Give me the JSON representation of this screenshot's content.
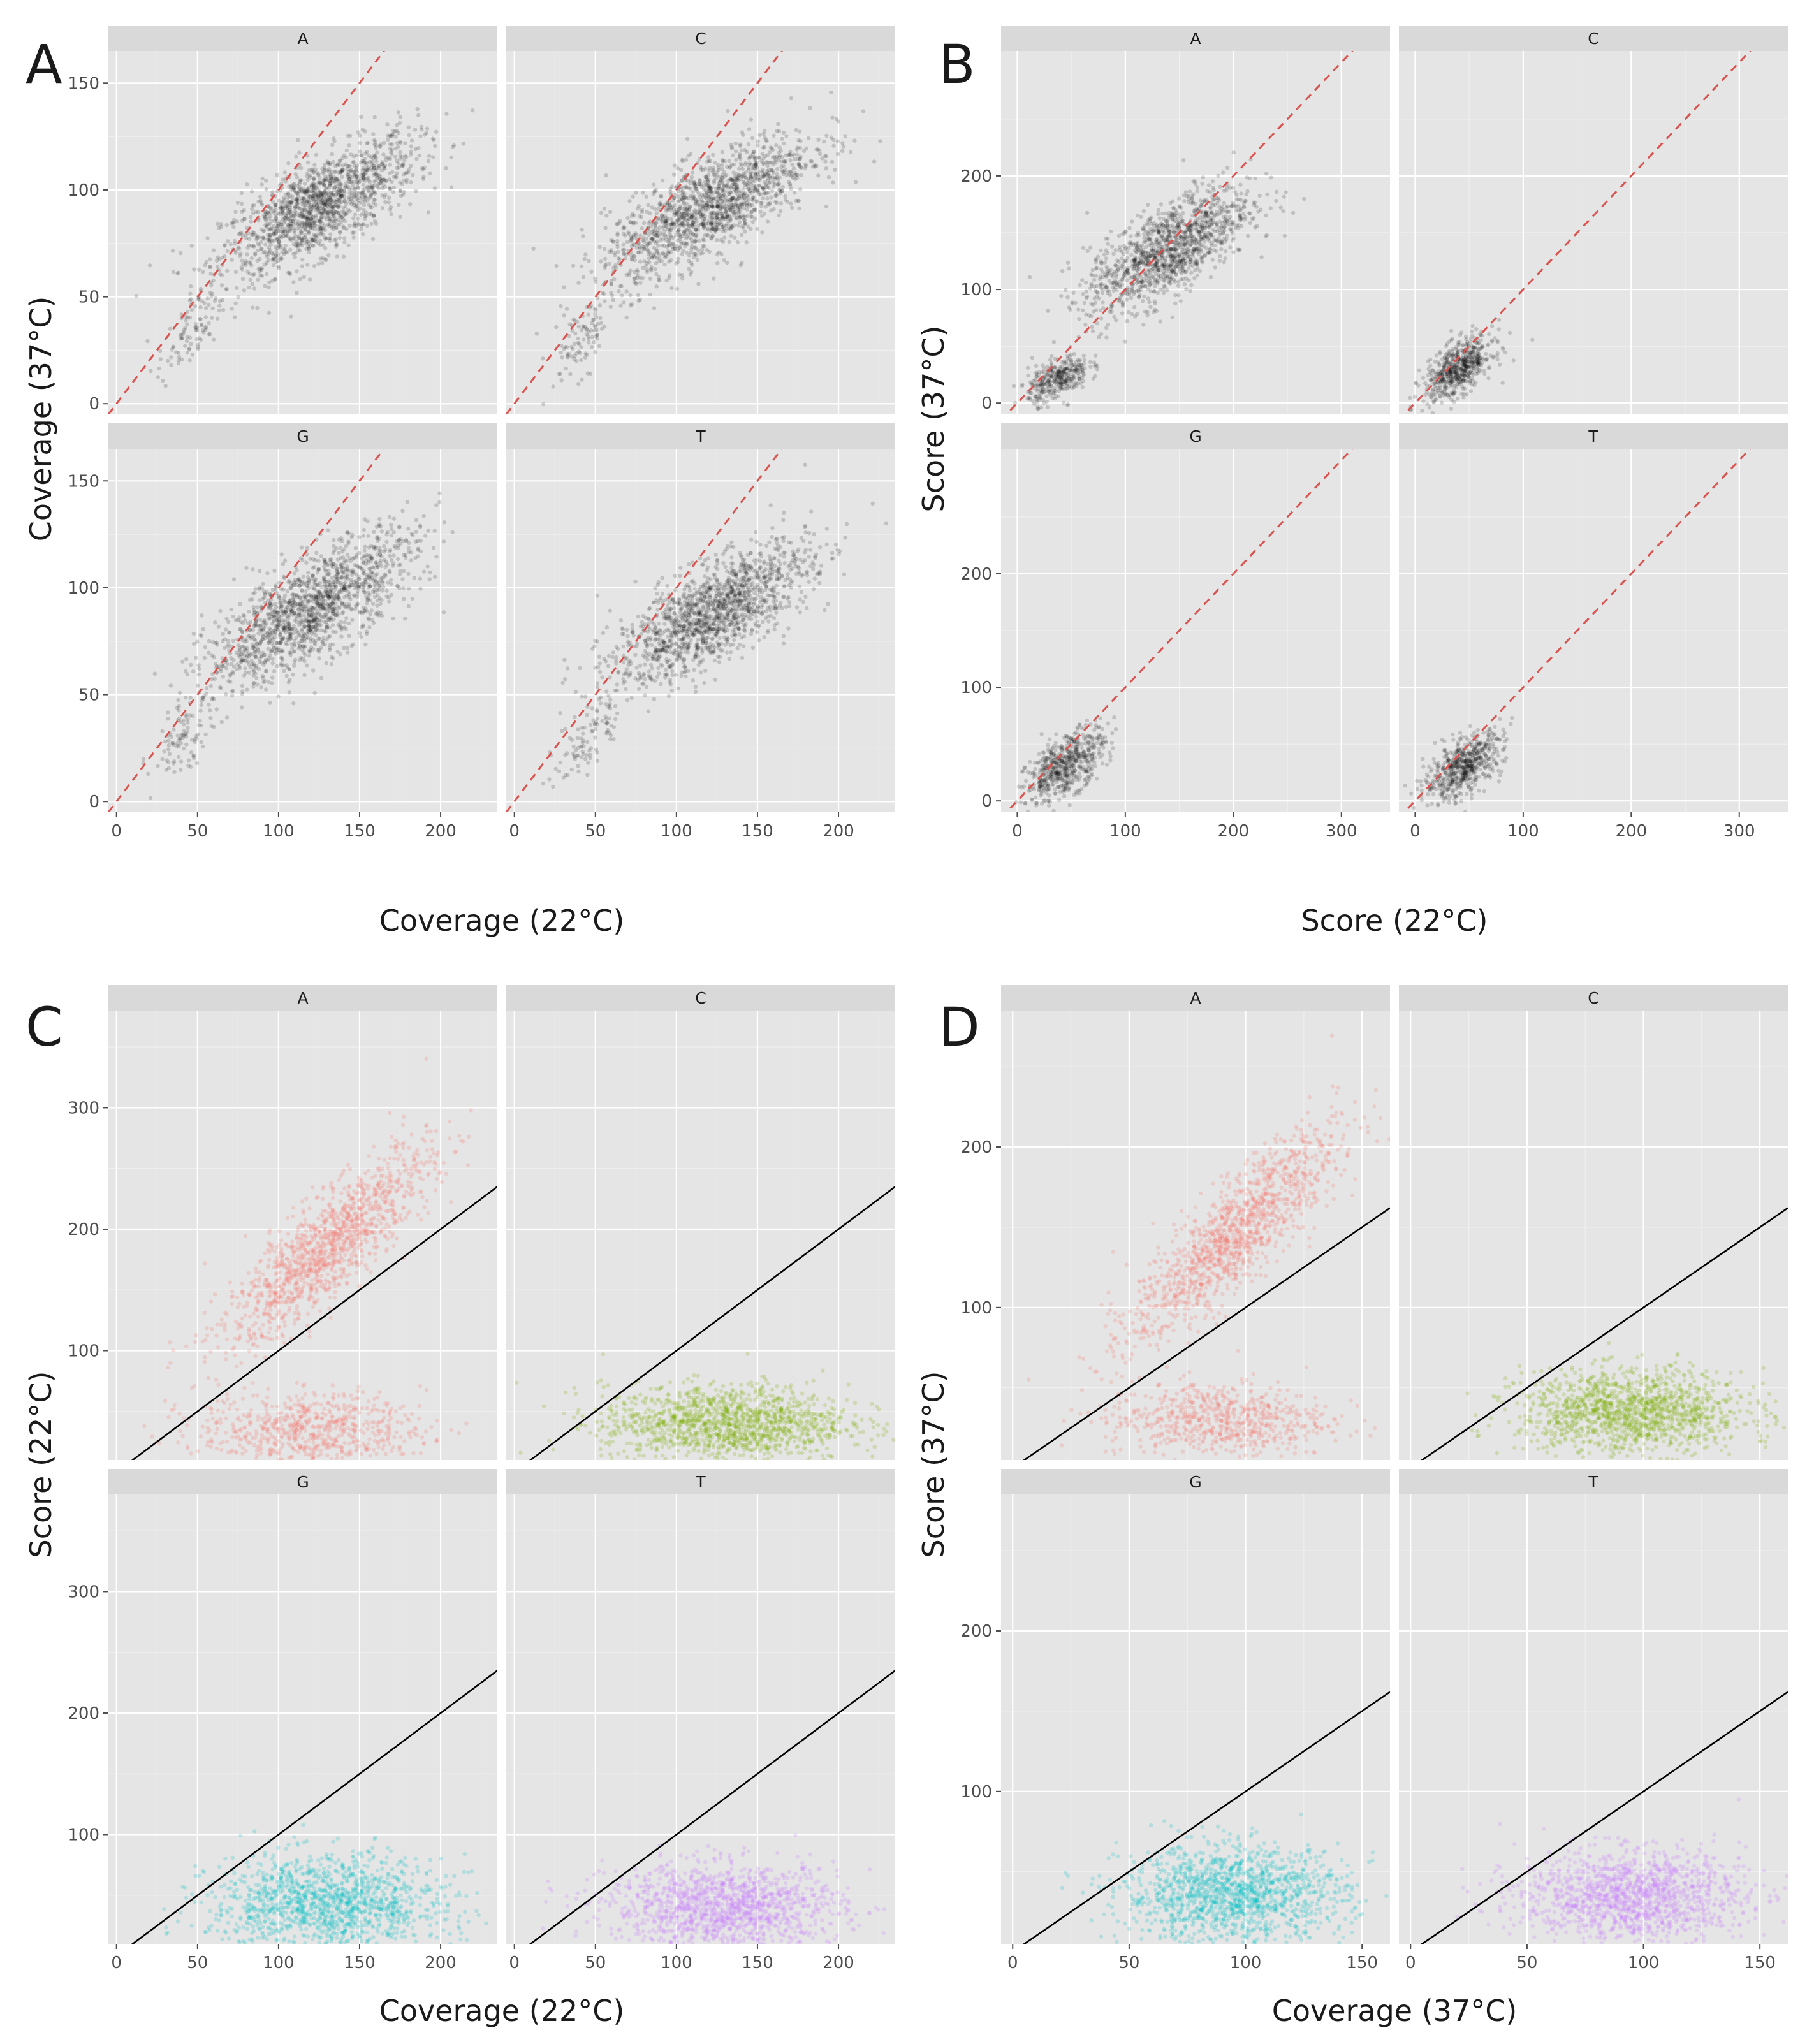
{
  "figure": {
    "panels": [
      {
        "letter": "A",
        "xlabel": "Coverage (22°C)",
        "ylabel": "Coverage (37°C)"
      },
      {
        "letter": "B",
        "xlabel": "Score (22°C)",
        "ylabel": "Score (37°C)"
      },
      {
        "letter": "C",
        "xlabel": "Coverage (22°C)",
        "ylabel": "Score (22°C)"
      },
      {
        "letter": "D",
        "xlabel": "Coverage (37°C)",
        "ylabel": "Score (37°C)"
      }
    ]
  },
  "chart_data": [
    {
      "panel": "A",
      "type": "scatter",
      "title": "",
      "xlabel": "Coverage (22°C)",
      "ylabel": "Coverage (37°C)",
      "facets": [
        "A",
        "C",
        "G",
        "T"
      ],
      "xlim": [
        -5,
        235
      ],
      "ylim": [
        -5,
        165
      ],
      "xticks": [
        0,
        50,
        100,
        150,
        200
      ],
      "yticks": [
        0,
        50,
        100,
        150
      ],
      "point_color": "#000000",
      "reference_line": {
        "style": "dashed",
        "color": "#d9534f",
        "slope": 1,
        "intercept": 0
      },
      "clouds": {
        "A": [
          {
            "cx": 125,
            "cy": 92,
            "sx": 30,
            "sy": 16,
            "corr": 0.72,
            "n": 1500
          },
          {
            "cx": 45,
            "cy": 32,
            "sx": 10,
            "sy": 10,
            "corr": 0.6,
            "n": 100
          }
        ],
        "C": [
          {
            "cx": 120,
            "cy": 92,
            "sx": 32,
            "sy": 17,
            "corr": 0.75,
            "n": 1500
          },
          {
            "cx": 42,
            "cy": 30,
            "sx": 10,
            "sy": 10,
            "corr": 0.6,
            "n": 100
          }
        ],
        "G": [
          {
            "cx": 120,
            "cy": 90,
            "sx": 32,
            "sy": 18,
            "corr": 0.75,
            "n": 1500
          },
          {
            "cx": 42,
            "cy": 30,
            "sx": 10,
            "sy": 10,
            "corr": 0.6,
            "n": 100
          }
        ],
        "T": [
          {
            "cx": 122,
            "cy": 88,
            "sx": 30,
            "sy": 16,
            "corr": 0.72,
            "n": 1500
          },
          {
            "cx": 45,
            "cy": 30,
            "sx": 10,
            "sy": 10,
            "corr": 0.6,
            "n": 100
          }
        ]
      }
    },
    {
      "panel": "B",
      "type": "scatter",
      "title": "",
      "xlabel": "Score (22°C)",
      "ylabel": "Score (37°C)",
      "facets": [
        "A",
        "C",
        "G",
        "T"
      ],
      "xlim": [
        -15,
        345
      ],
      "ylim": [
        -10,
        310
      ],
      "xticks": [
        0,
        100,
        200,
        300
      ],
      "yticks": [
        0,
        100,
        200
      ],
      "point_color": "#000000",
      "reference_line": {
        "style": "dashed",
        "color": "#d9534f",
        "slope": 1,
        "intercept": 0
      },
      "clouds": {
        "A": [
          {
            "cx": 140,
            "cy": 135,
            "sx": 38,
            "sy": 28,
            "corr": 0.7,
            "n": 1300
          },
          {
            "cx": 38,
            "cy": 22,
            "sx": 14,
            "sy": 10,
            "corr": 0.5,
            "n": 350
          }
        ],
        "C": [
          {
            "cx": 40,
            "cy": 30,
            "sx": 16,
            "sy": 14,
            "corr": 0.6,
            "n": 600
          }
        ],
        "G": [
          {
            "cx": 45,
            "cy": 32,
            "sx": 18,
            "sy": 16,
            "corr": 0.6,
            "n": 600
          }
        ],
        "T": [
          {
            "cx": 45,
            "cy": 30,
            "sx": 18,
            "sy": 15,
            "corr": 0.6,
            "n": 600
          }
        ]
      }
    },
    {
      "panel": "C",
      "type": "scatter",
      "title": "",
      "xlabel": "Coverage (22°C)",
      "ylabel": "Score (22°C)",
      "facets": [
        "A",
        "C",
        "G",
        "T"
      ],
      "xlim": [
        -5,
        235
      ],
      "ylim": [
        10,
        380
      ],
      "xticks": [
        0,
        50,
        100,
        150,
        200
      ],
      "yticks": [
        100,
        200,
        300
      ],
      "facet_colors": {
        "A": "#f8766d",
        "C": "#7cae00",
        "G": "#00bfc4",
        "T": "#c77cff"
      },
      "reference_line": {
        "style": "solid",
        "color": "#000000",
        "slope": 1.0,
        "intercept": 0
      },
      "clouds": {
        "A": [
          {
            "cx": 130,
            "cy": 185,
            "sx": 32,
            "sy": 40,
            "corr": 0.85,
            "n": 1300
          },
          {
            "cx": 120,
            "cy": 35,
            "sx": 35,
            "sy": 15,
            "corr": 0.0,
            "n": 700
          }
        ],
        "C": [
          {
            "cx": 130,
            "cy": 40,
            "sx": 38,
            "sy": 16,
            "corr": 0.0,
            "n": 1400
          }
        ],
        "G": [
          {
            "cx": 130,
            "cy": 42,
            "sx": 36,
            "sy": 20,
            "corr": 0.0,
            "n": 1400
          }
        ],
        "T": [
          {
            "cx": 130,
            "cy": 40,
            "sx": 36,
            "sy": 18,
            "corr": 0.0,
            "n": 1400
          }
        ]
      }
    },
    {
      "panel": "D",
      "type": "scatter",
      "title": "",
      "xlabel": "Coverage (37°C)",
      "ylabel": "Score (37°C)",
      "facets": [
        "A",
        "C",
        "G",
        "T"
      ],
      "xlim": [
        -5,
        162
      ],
      "ylim": [
        5,
        285
      ],
      "xticks": [
        0,
        50,
        100,
        150
      ],
      "yticks": [
        100,
        200
      ],
      "facet_colors": {
        "A": "#f8766d",
        "C": "#7cae00",
        "G": "#00bfc4",
        "T": "#c77cff"
      },
      "reference_line": {
        "style": "solid",
        "color": "#000000",
        "slope": 1.0,
        "intercept": 0
      },
      "clouds": {
        "A": [
          {
            "cx": 95,
            "cy": 145,
            "sx": 22,
            "sy": 32,
            "corr": 0.85,
            "n": 1300
          },
          {
            "cx": 88,
            "cy": 30,
            "sx": 24,
            "sy": 12,
            "corr": 0.0,
            "n": 700
          }
        ],
        "C": [
          {
            "cx": 95,
            "cy": 35,
            "sx": 24,
            "sy": 13,
            "corr": 0.0,
            "n": 1400
          }
        ],
        "G": [
          {
            "cx": 95,
            "cy": 36,
            "sx": 24,
            "sy": 15,
            "corr": 0.0,
            "n": 1400
          }
        ],
        "T": [
          {
            "cx": 95,
            "cy": 35,
            "sx": 24,
            "sy": 14,
            "corr": 0.0,
            "n": 1400
          }
        ]
      }
    }
  ]
}
